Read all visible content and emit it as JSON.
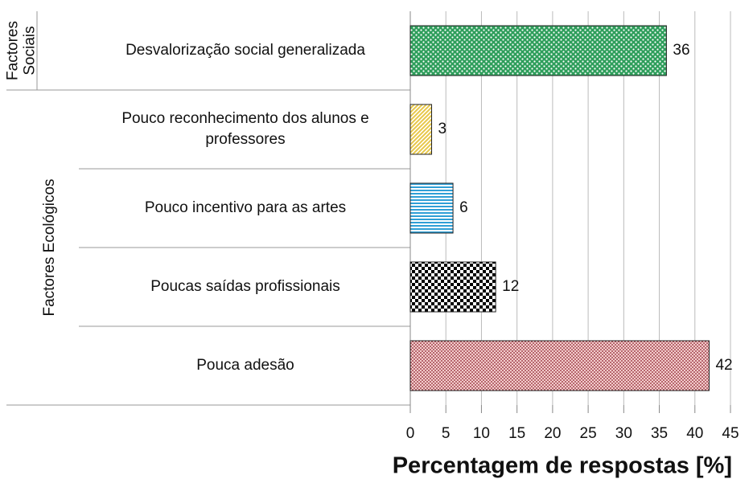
{
  "chart_data": {
    "type": "bar",
    "orientation": "horizontal",
    "xlabel": "Percentagem de respostas [%]",
    "xlim": [
      0,
      45
    ],
    "xticks": [
      0,
      5,
      10,
      15,
      20,
      25,
      30,
      35,
      40,
      45
    ],
    "grid": true,
    "groups": [
      {
        "label": [
          "Factores",
          "Sociais"
        ],
        "categories": [
          "Desvalorização social generalizada"
        ],
        "values": [
          36
        ],
        "colors": [
          "#2e9e5b"
        ]
      },
      {
        "label": [
          "Factores Ecológicos"
        ],
        "categories": [
          "Pouco reconhecimento dos alunos e professores",
          "Pouco incentivo para as artes",
          "Poucas saídas profissionais",
          "Pouca adesão"
        ],
        "values": [
          3,
          6,
          12,
          42
        ],
        "colors": [
          "#e8c84a",
          "#2f9fd6",
          "#000000",
          "#8b1e2a"
        ]
      }
    ]
  }
}
